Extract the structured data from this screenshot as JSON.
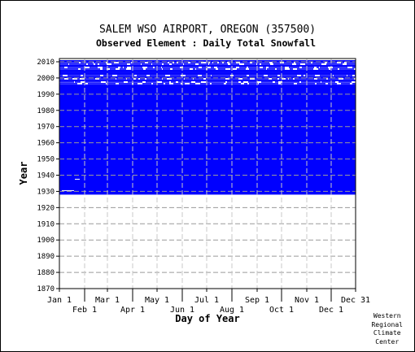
{
  "chart_data": {
    "type": "heatmap",
    "title": "SALEM WSO AIRPORT, OREGON   (357500)",
    "subtitle": "Observed Element : Daily Total Snowfall",
    "xlabel": "Day of Year",
    "ylabel": "Year",
    "x_ticks_upper": [
      "Jan 1",
      "Mar 1",
      "May 1",
      "Jul 1",
      "Sep 1",
      "Nov 1",
      "Dec 31"
    ],
    "x_ticks_lower": [
      "Feb 1",
      "Apr 1",
      "Jun 1",
      "Aug 1",
      "Oct 1",
      "Dec 1"
    ],
    "x_tick_days": [
      1,
      32,
      60,
      91,
      121,
      152,
      182,
      213,
      244,
      274,
      305,
      335,
      365
    ],
    "y_ticks": [
      "1870",
      "1880",
      "1890",
      "1900",
      "1910",
      "1920",
      "1930",
      "1940",
      "1950",
      "1960",
      "1970",
      "1980",
      "1990",
      "2000",
      "2010"
    ],
    "ylim": [
      1870,
      2012
    ],
    "xlim": [
      1,
      365
    ],
    "grid": true,
    "data_color": "#0000ff",
    "coverage": {
      "solid_years": [
        1928,
        1995
      ],
      "sparse_years": [
        1996,
        2011
      ],
      "sparse_row_fill": [
        {
          "year": 1996,
          "pattern": "gappy"
        },
        {
          "year": 1997,
          "pattern": "gappy"
        },
        {
          "year": 1998,
          "pattern": "solid"
        },
        {
          "year": 1999,
          "pattern": "gappy"
        },
        {
          "year": 2000,
          "pattern": "solid"
        },
        {
          "year": 2001,
          "pattern": "gappy"
        },
        {
          "year": 2002,
          "pattern": "solid"
        },
        {
          "year": 2003,
          "pattern": "solid"
        },
        {
          "year": 2004,
          "pattern": "solid"
        },
        {
          "year": 2005,
          "pattern": "gappy"
        },
        {
          "year": 2006,
          "pattern": "gappy"
        },
        {
          "year": 2007,
          "pattern": "solid"
        },
        {
          "year": 2008,
          "pattern": "gappy"
        },
        {
          "year": 2009,
          "pattern": "gappy"
        },
        {
          "year": 2010,
          "pattern": "solid"
        },
        {
          "year": 2011,
          "pattern": "empty"
        }
      ],
      "missing_segments": [
        {
          "year": 1930,
          "start_day": 4,
          "end_day": 19
        },
        {
          "year": 1937,
          "start_day": 20,
          "end_day": 26
        }
      ]
    }
  },
  "footer": {
    "credit_lines": [
      "Western",
      "Regional",
      "Climate",
      "Center"
    ]
  }
}
